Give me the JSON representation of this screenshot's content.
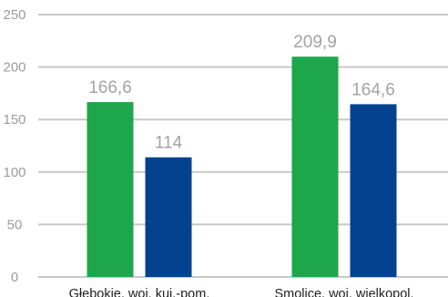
{
  "chart_data": {
    "type": "bar",
    "categories": [
      "Głebokie, woj. kuj.-pom.",
      "Smolice, woj. wielkopol."
    ],
    "series": [
      {
        "values": [
          166.6,
          209.9
        ],
        "color": "#1ea64b"
      },
      {
        "values": [
          114,
          164.6
        ],
        "color": "#04428f"
      }
    ],
    "data_labels": [
      [
        "166,6",
        "209,9"
      ],
      [
        "114",
        "164,6"
      ]
    ],
    "yticks": [
      0,
      50,
      100,
      150,
      200,
      250
    ],
    "ylim": [
      0,
      250
    ],
    "grid": true,
    "legend": "none",
    "title": "",
    "xlabel": "",
    "ylabel": ""
  }
}
